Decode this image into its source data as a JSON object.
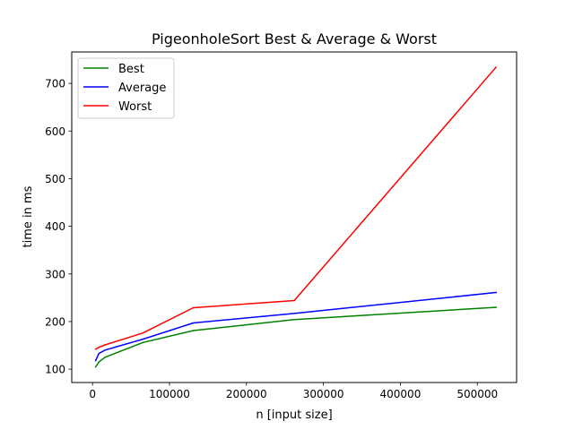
{
  "chart_data": {
    "type": "line",
    "title": "PigeonholeSort Best & Average & Worst",
    "xlabel": "n [input size]",
    "ylabel": "time in ms",
    "xlim": [
      -27000,
      551000
    ],
    "ylim": [
      72,
      766
    ],
    "xticks": [
      0,
      100000,
      200000,
      300000,
      400000,
      500000
    ],
    "xtick_labels": [
      "0",
      "100000",
      "200000",
      "300000",
      "400000",
      "500000"
    ],
    "yticks": [
      100,
      200,
      300,
      400,
      500,
      600,
      700
    ],
    "ytick_labels": [
      "100",
      "200",
      "300",
      "400",
      "500",
      "600",
      "700"
    ],
    "grid": false,
    "legend_position": "top-left",
    "x": [
      4096,
      8192,
      16384,
      65536,
      131072,
      262144,
      524288
    ],
    "series": [
      {
        "name": "Best",
        "color": "#008000",
        "values": [
          105,
          115,
          125,
          156,
          181,
          204,
          230
        ]
      },
      {
        "name": "Average",
        "color": "#0000ff",
        "values": [
          118,
          133,
          140,
          163,
          197,
          217,
          261
        ]
      },
      {
        "name": "Worst",
        "color": "#ff0000",
        "values": [
          142,
          146,
          151,
          176,
          229,
          244,
          734
        ]
      }
    ]
  }
}
